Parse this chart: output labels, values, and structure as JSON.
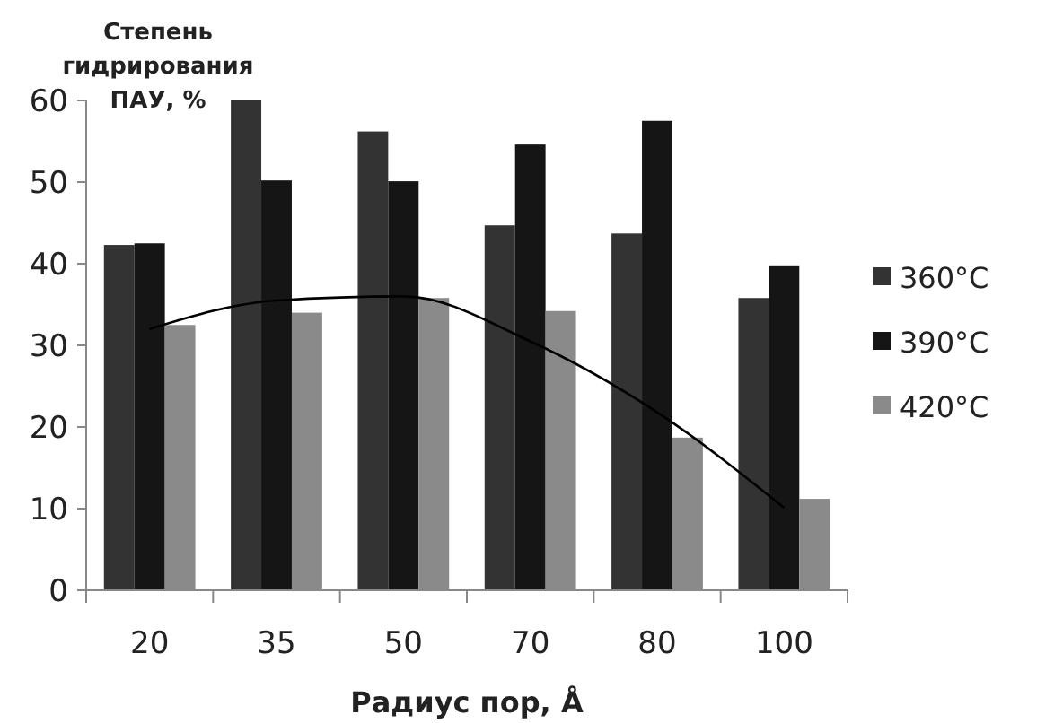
{
  "chart_data": {
    "type": "bar",
    "ylabel": "Степень гидрирования ПАУ, %",
    "xlabel": "Радиус пор, Å",
    "categories": [
      "20",
      "35",
      "50",
      "70",
      "80",
      "100"
    ],
    "series": [
      {
        "name": "360°C",
        "color": "#333333",
        "values": [
          42.3,
          60,
          56.2,
          44.7,
          43.7,
          35.8
        ]
      },
      {
        "name": "390°C",
        "color": "#151515",
        "values": [
          42.5,
          50.2,
          50.1,
          54.6,
          57.5,
          39.8
        ]
      },
      {
        "name": "420°C",
        "color": "#8a8a8a",
        "values": [
          32.5,
          34,
          35.8,
          34.2,
          18.7,
          11.2
        ]
      },
      {
        "type": "line",
        "color": "#000000",
        "values": [
          32,
          35.5,
          36,
          30.5,
          21.8,
          10.1
        ]
      }
    ],
    "ylim": [
      0,
      60
    ],
    "yticks": [
      0,
      10,
      20,
      30,
      40,
      50,
      60
    ],
    "grid": false,
    "legend": "right",
    "marker": "none"
  }
}
